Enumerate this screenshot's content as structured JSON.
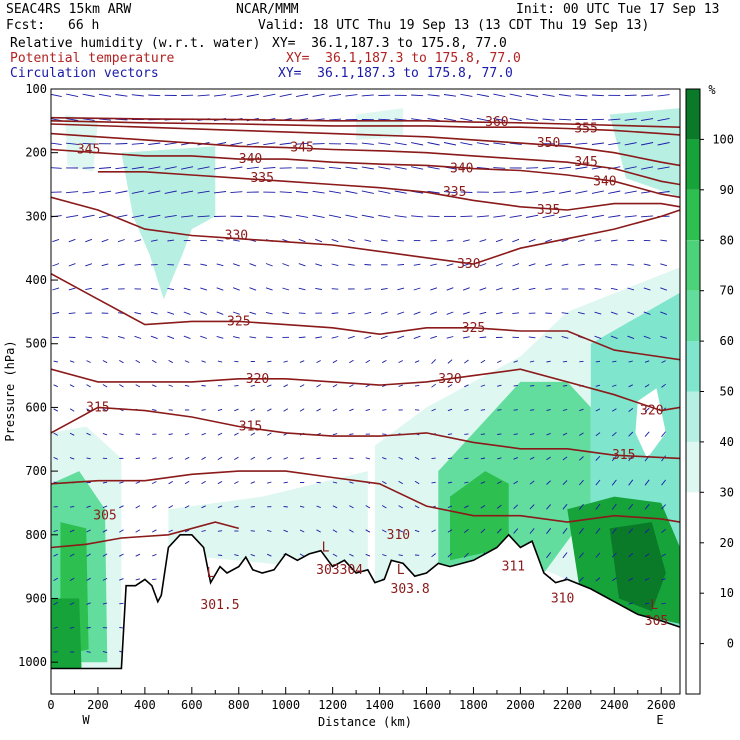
{
  "header": {
    "model": "SEAC4RS 15km ARW",
    "org": "NCAR/MMM",
    "init": "Init: 00 UTC Tue 17 Sep 13",
    "fcst_label": "Fcst:",
    "fcst_value": "66 h",
    "valid": "Valid: 18 UTC Thu 19 Sep 13 (13 CDT Thu 19 Sep 13)",
    "fields": [
      {
        "name": "Relative humidity (w.r.t. water)",
        "xy": "XY=  36.1,187.3 to 175.8, 77.0",
        "color": "#000000"
      },
      {
        "name": "Potential temperature",
        "xy": "XY=  36.1,187.3 to 175.8, 77.0",
        "color": "#b22222"
      },
      {
        "name": "Circulation vectors",
        "xy": "XY=  36.1,187.3 to 175.8, 77.0",
        "color": "#1a1aa8"
      }
    ]
  },
  "chart_data": {
    "type": "heatmap",
    "title": "",
    "xlabel": "Distance (km)",
    "ylabel": "Pressure (hPa)",
    "x_ticks": [
      0,
      200,
      400,
      600,
      800,
      1000,
      1200,
      1400,
      1600,
      1800,
      2000,
      2200,
      2400,
      2600
    ],
    "xlim": [
      0,
      2680
    ],
    "y_ticks": [
      100,
      200,
      300,
      400,
      500,
      600,
      700,
      800,
      900,
      1000
    ],
    "ylim": [
      1050,
      100
    ],
    "x_end_labels": {
      "left": "W",
      "right": "E"
    },
    "colorbar": {
      "unit": "%",
      "levels": [
        0,
        10,
        20,
        30,
        40,
        50,
        60,
        70,
        80,
        90,
        100
      ],
      "colors": [
        "#ffffff",
        "#ffffff",
        "#ffffff",
        "#ffffff",
        "#dff7f1",
        "#b8efe3",
        "#7fe5cd",
        "#62dd9e",
        "#4cd37a",
        "#2dbf4f",
        "#16a33a",
        "#0a7a29"
      ]
    },
    "theta_contours": [
      {
        "value": 305,
        "color": "#8b1a1a",
        "points": [
          [
            0,
            820
          ],
          [
            150,
            815
          ],
          [
            300,
            805
          ],
          [
            500,
            800
          ],
          [
            700,
            780
          ],
          [
            800,
            790
          ]
        ]
      },
      {
        "value": 310,
        "color": "#8b1a1a",
        "points": [
          [
            0,
            720
          ],
          [
            200,
            715
          ],
          [
            400,
            715
          ],
          [
            600,
            705
          ],
          [
            800,
            700
          ],
          [
            1000,
            700
          ],
          [
            1200,
            710
          ],
          [
            1400,
            720
          ],
          [
            1600,
            755
          ],
          [
            1800,
            770
          ],
          [
            2000,
            770
          ],
          [
            2200,
            780
          ],
          [
            2400,
            770
          ],
          [
            2600,
            775
          ],
          [
            2680,
            780
          ]
        ]
      },
      {
        "value": 315,
        "color": "#8b1a1a",
        "points": [
          [
            0,
            640
          ],
          [
            100,
            620
          ],
          [
            200,
            600
          ],
          [
            400,
            605
          ],
          [
            600,
            615
          ],
          [
            800,
            630
          ],
          [
            1000,
            640
          ],
          [
            1200,
            645
          ],
          [
            1400,
            645
          ],
          [
            1600,
            640
          ],
          [
            1800,
            655
          ],
          [
            2000,
            665
          ],
          [
            2200,
            665
          ],
          [
            2400,
            675
          ],
          [
            2680,
            680
          ]
        ]
      },
      {
        "value": 320,
        "color": "#8b1a1a",
        "points": [
          [
            0,
            540
          ],
          [
            200,
            560
          ],
          [
            400,
            560
          ],
          [
            600,
            560
          ],
          [
            800,
            555
          ],
          [
            1000,
            555
          ],
          [
            1200,
            560
          ],
          [
            1400,
            565
          ],
          [
            1600,
            560
          ],
          [
            1800,
            550
          ],
          [
            2000,
            540
          ],
          [
            2200,
            560
          ],
          [
            2400,
            580
          ],
          [
            2600,
            605
          ],
          [
            2680,
            600
          ]
        ]
      },
      {
        "value": 325,
        "color": "#8b1a1a",
        "points": [
          [
            0,
            390
          ],
          [
            200,
            430
          ],
          [
            400,
            470
          ],
          [
            600,
            465
          ],
          [
            800,
            465
          ],
          [
            1000,
            470
          ],
          [
            1200,
            475
          ],
          [
            1400,
            485
          ],
          [
            1600,
            475
          ],
          [
            1800,
            475
          ],
          [
            2000,
            480
          ],
          [
            2200,
            480
          ],
          [
            2400,
            510
          ],
          [
            2680,
            525
          ]
        ]
      },
      {
        "value": 330,
        "color": "#8b1a1a",
        "points": [
          [
            0,
            270
          ],
          [
            200,
            290
          ],
          [
            400,
            320
          ],
          [
            600,
            330
          ],
          [
            800,
            335
          ],
          [
            1000,
            340
          ],
          [
            1200,
            345
          ],
          [
            1400,
            355
          ],
          [
            1600,
            365
          ],
          [
            1800,
            375
          ],
          [
            2000,
            350
          ],
          [
            2200,
            335
          ],
          [
            2400,
            320
          ],
          [
            2600,
            300
          ],
          [
            2680,
            290
          ]
        ]
      },
      {
        "value": 335,
        "color": "#8b1a1a",
        "points": [
          [
            200,
            230
          ],
          [
            400,
            230
          ],
          [
            600,
            235
          ],
          [
            800,
            240
          ],
          [
            1000,
            245
          ],
          [
            1200,
            250
          ],
          [
            1400,
            255
          ],
          [
            1600,
            262
          ],
          [
            1800,
            275
          ],
          [
            2000,
            285
          ],
          [
            2200,
            290
          ],
          [
            2400,
            280
          ],
          [
            2600,
            280
          ],
          [
            2680,
            285
          ]
        ]
      },
      {
        "value": 340,
        "color": "#8b1a1a",
        "points": [
          [
            0,
            195
          ],
          [
            200,
            200
          ],
          [
            400,
            205
          ],
          [
            600,
            205
          ],
          [
            800,
            210
          ],
          [
            1000,
            210
          ],
          [
            1200,
            215
          ],
          [
            1400,
            218
          ],
          [
            1600,
            220
          ],
          [
            1800,
            225
          ],
          [
            2000,
            228
          ],
          [
            2200,
            235
          ],
          [
            2400,
            245
          ],
          [
            2600,
            265
          ],
          [
            2680,
            270
          ]
        ]
      },
      {
        "value": 345,
        "color": "#8b1a1a",
        "points": [
          [
            0,
            170
          ],
          [
            200,
            175
          ],
          [
            400,
            180
          ],
          [
            600,
            185
          ],
          [
            800,
            190
          ],
          [
            1000,
            192
          ],
          [
            1200,
            195
          ],
          [
            1400,
            197
          ],
          [
            1600,
            200
          ],
          [
            1800,
            205
          ],
          [
            2000,
            210
          ],
          [
            2200,
            215
          ],
          [
            2400,
            225
          ],
          [
            2600,
            245
          ],
          [
            2680,
            250
          ]
        ]
      },
      {
        "value": 350,
        "color": "#8b1a1a",
        "points": [
          [
            0,
            155
          ],
          [
            400,
            160
          ],
          [
            800,
            165
          ],
          [
            1200,
            170
          ],
          [
            1600,
            175
          ],
          [
            1800,
            180
          ],
          [
            2000,
            185
          ],
          [
            2200,
            190
          ],
          [
            2400,
            200
          ],
          [
            2600,
            215
          ],
          [
            2680,
            220
          ]
        ]
      },
      {
        "value": 355,
        "color": "#8b1a1a",
        "points": [
          [
            0,
            150
          ],
          [
            400,
            153
          ],
          [
            800,
            155
          ],
          [
            1200,
            158
          ],
          [
            1600,
            158
          ],
          [
            1800,
            160
          ],
          [
            2000,
            160
          ],
          [
            2200,
            162
          ],
          [
            2400,
            165
          ],
          [
            2600,
            170
          ],
          [
            2680,
            172
          ]
        ]
      },
      {
        "value": 360,
        "color": "#8b1a1a",
        "points": [
          [
            0,
            145
          ],
          [
            400,
            147
          ],
          [
            800,
            148
          ],
          [
            1200,
            150
          ],
          [
            1600,
            150
          ],
          [
            1800,
            152
          ],
          [
            2000,
            153
          ],
          [
            2200,
            155
          ],
          [
            2680,
            160
          ]
        ]
      }
    ],
    "contour_labels": [
      {
        "text": "345",
        "x": 160,
        "y": 195
      },
      {
        "text": "340",
        "x": 850,
        "y": 210
      },
      {
        "text": "345",
        "x": 1070,
        "y": 192
      },
      {
        "text": "335",
        "x": 900,
        "y": 240
      },
      {
        "text": "330",
        "x": 790,
        "y": 330
      },
      {
        "text": "325",
        "x": 800,
        "y": 465
      },
      {
        "text": "320",
        "x": 880,
        "y": 555
      },
      {
        "text": "315",
        "x": 200,
        "y": 600
      },
      {
        "text": "315",
        "x": 850,
        "y": 630
      },
      {
        "text": "305",
        "x": 230,
        "y": 770
      },
      {
        "text": "360",
        "x": 1900,
        "y": 152
      },
      {
        "text": "355",
        "x": 2280,
        "y": 162
      },
      {
        "text": "350",
        "x": 2120,
        "y": 185
      },
      {
        "text": "345",
        "x": 2280,
        "y": 215
      },
      {
        "text": "340",
        "x": 1750,
        "y": 225
      },
      {
        "text": "340",
        "x": 2360,
        "y": 245
      },
      {
        "text": "335",
        "x": 1720,
        "y": 262
      },
      {
        "text": "335",
        "x": 2120,
        "y": 290
      },
      {
        "text": "330",
        "x": 1780,
        "y": 375
      },
      {
        "text": "325",
        "x": 1800,
        "y": 475
      },
      {
        "text": "320",
        "x": 1700,
        "y": 555
      },
      {
        "text": "320",
        "x": 2560,
        "y": 605
      },
      {
        "text": "315",
        "x": 2440,
        "y": 675
      },
      {
        "text": "310",
        "x": 1480,
        "y": 800
      },
      {
        "text": "311",
        "x": 1970,
        "y": 850
      },
      {
        "text": "310",
        "x": 2180,
        "y": 900
      },
      {
        "text": "303",
        "x": 1180,
        "y": 855
      },
      {
        "text": "304",
        "x": 1280,
        "y": 855
      },
      {
        "text": "303.8",
        "x": 1530,
        "y": 885
      },
      {
        "text": "301.5",
        "x": 720,
        "y": 910
      },
      {
        "text": "305",
        "x": 2580,
        "y": 935
      }
    ],
    "lows": [
      {
        "text": "L",
        "x": 680,
        "y": 860
      },
      {
        "text": "L",
        "x": 1170,
        "y": 820
      },
      {
        "text": "L",
        "x": 1490,
        "y": 855
      },
      {
        "text": "L",
        "x": 2570,
        "y": 910
      }
    ],
    "terrain": {
      "points": [
        [
          0,
          1010
        ],
        [
          200,
          1010
        ],
        [
          300,
          1010
        ],
        [
          320,
          880
        ],
        [
          360,
          880
        ],
        [
          400,
          870
        ],
        [
          430,
          880
        ],
        [
          455,
          905
        ],
        [
          470,
          895
        ],
        [
          500,
          820
        ],
        [
          550,
          800
        ],
        [
          600,
          800
        ],
        [
          650,
          820
        ],
        [
          680,
          875
        ],
        [
          720,
          850
        ],
        [
          750,
          860
        ],
        [
          800,
          850
        ],
        [
          830,
          835
        ],
        [
          860,
          855
        ],
        [
          900,
          860
        ],
        [
          950,
          855
        ],
        [
          1000,
          830
        ],
        [
          1050,
          840
        ],
        [
          1100,
          830
        ],
        [
          1150,
          825
        ],
        [
          1200,
          850
        ],
        [
          1250,
          840
        ],
        [
          1300,
          860
        ],
        [
          1350,
          855
        ],
        [
          1380,
          875
        ],
        [
          1420,
          870
        ],
        [
          1450,
          840
        ],
        [
          1500,
          845
        ],
        [
          1550,
          865
        ],
        [
          1600,
          860
        ],
        [
          1650,
          845
        ],
        [
          1700,
          850
        ],
        [
          1800,
          840
        ],
        [
          1900,
          820
        ],
        [
          1950,
          800
        ],
        [
          2000,
          820
        ],
        [
          2050,
          810
        ],
        [
          2100,
          860
        ],
        [
          2150,
          875
        ],
        [
          2200,
          870
        ],
        [
          2300,
          885
        ],
        [
          2400,
          905
        ],
        [
          2500,
          925
        ],
        [
          2600,
          935
        ],
        [
          2680,
          945
        ]
      ]
    }
  }
}
